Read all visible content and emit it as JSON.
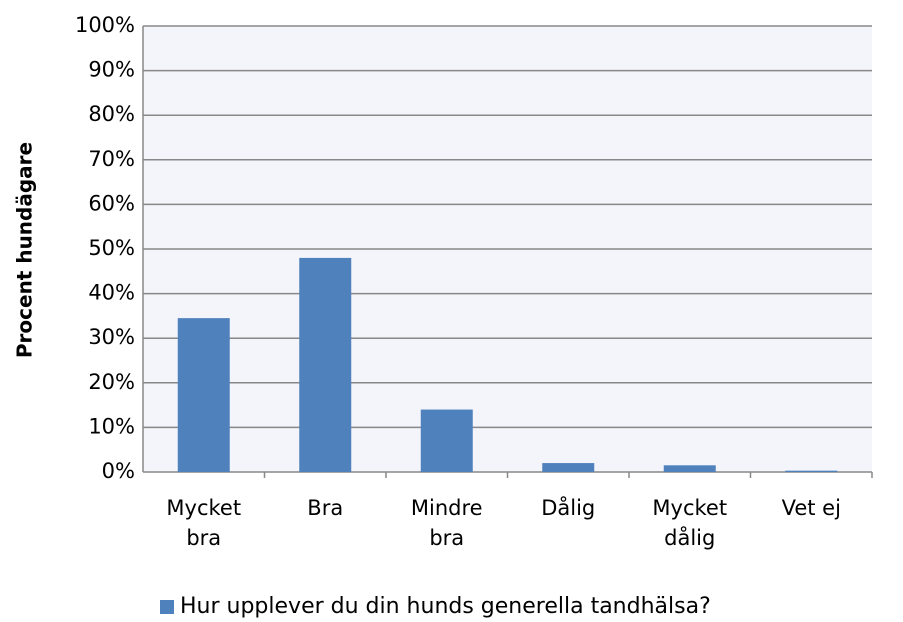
{
  "chart_data": {
    "type": "bar",
    "y_label": "Procent hundägare",
    "categories": [
      "Mycket bra",
      "Bra",
      "Mindre bra",
      "Dålig",
      "Mycket dålig",
      "Vet ej"
    ],
    "series": [
      {
        "name": "Hur upplever du din hunds generella tandhälsa?",
        "color": "#4f81bd",
        "values": [
          34.5,
          48,
          14,
          2,
          1.5,
          0.3
        ]
      }
    ],
    "ylim": [
      0,
      100
    ],
    "yticks": [
      {
        "value": 0,
        "label": "0%"
      },
      {
        "value": 10,
        "label": "10%"
      },
      {
        "value": 20,
        "label": "20%"
      },
      {
        "value": 30,
        "label": "30%"
      },
      {
        "value": 40,
        "label": "40%"
      },
      {
        "value": 50,
        "label": "50%"
      },
      {
        "value": 60,
        "label": "60%"
      },
      {
        "value": 70,
        "label": "70%"
      },
      {
        "value": 80,
        "label": "80%"
      },
      {
        "value": 90,
        "label": "90%"
      },
      {
        "value": 100,
        "label": "100%"
      }
    ],
    "grid": true,
    "legend": "bottom"
  }
}
